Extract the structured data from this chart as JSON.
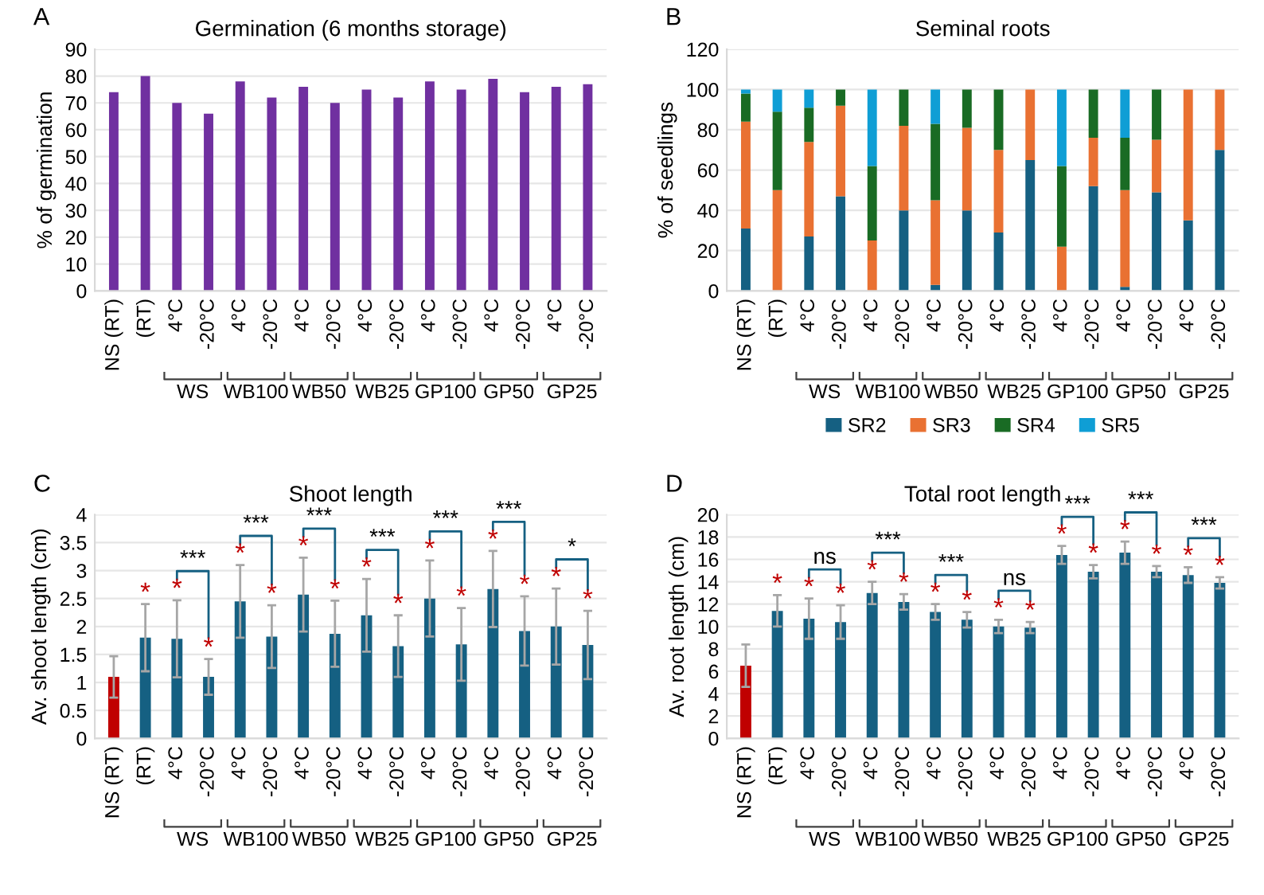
{
  "chart_data": [
    {
      "type": "bar",
      "title": "Germination (6 months storage)",
      "ylabel": "% of germination",
      "categories": [
        "NS (RT)",
        "(RT)",
        "4°C",
        "-20°C",
        "4°C",
        "-20°C",
        "4°C",
        "-20°C",
        "4°C",
        "-20°C",
        "4°C",
        "-20°C",
        "4°C",
        "-20°C",
        "4°C",
        "-20°C"
      ],
      "values": [
        74,
        80,
        70,
        66,
        78,
        72,
        76,
        70,
        75,
        72,
        78,
        75,
        79,
        74,
        76,
        77
      ],
      "color": "#7030a0",
      "ylim": [
        0,
        90
      ],
      "yticks": [
        0,
        10,
        20,
        30,
        40,
        50,
        60,
        70,
        80,
        90
      ],
      "grid": "y",
      "annotations": [
        "A",
        "WS",
        "WB100",
        "WB50",
        "WB25",
        "GP100",
        "GP50",
        "GP25"
      ]
    },
    {
      "type": "bar",
      "stacked": true,
      "title": "Seminal roots",
      "ylabel": "% of seedlings",
      "categories": [
        "NS (RT)",
        "(RT)",
        "4°C",
        "-20°C",
        "4°C",
        "-20°C",
        "4°C",
        "-20°C",
        "4°C",
        "-20°C",
        "4°C",
        "-20°C",
        "4°C",
        "-20°C",
        "4°C",
        "-20°C"
      ],
      "series": [
        {
          "name": "SR2",
          "color": "#156082",
          "values": [
            31,
            0,
            27,
            47,
            0,
            40,
            3,
            40,
            29,
            65,
            0,
            52,
            2,
            49,
            35,
            70
          ]
        },
        {
          "name": "SR3",
          "color": "#e97132",
          "values": [
            53,
            50,
            47,
            45,
            25,
            42,
            42,
            41,
            41,
            35,
            22,
            24,
            48,
            26,
            65,
            30
          ]
        },
        {
          "name": "SR4",
          "color": "#196b24",
          "values": [
            14,
            39,
            17,
            8,
            37,
            18,
            38,
            19,
            30,
            0,
            40,
            24,
            26,
            25,
            0,
            0
          ]
        },
        {
          "name": "SR5",
          "color": "#0f9ed5",
          "values": [
            2,
            11,
            9,
            0,
            38,
            0,
            17,
            0,
            0,
            0,
            38,
            0,
            24,
            0,
            0,
            0
          ]
        }
      ],
      "ylim": [
        0,
        120
      ],
      "yticks": [
        0,
        20,
        40,
        60,
        80,
        100,
        120
      ],
      "grid": "y",
      "legend": "bottom",
      "annotations": [
        "B",
        "WS",
        "WB100",
        "WB50",
        "WB25",
        "GP100",
        "GP50",
        "GP25"
      ]
    },
    {
      "type": "bar",
      "title": "Shoot length",
      "ylabel": "Av. shoot length (cm)",
      "categories": [
        "NS (RT)",
        "(RT)",
        "4°C",
        "-20°C",
        "4°C",
        "-20°C",
        "4°C",
        "-20°C",
        "4°C",
        "-20°C",
        "4°C",
        "-20°C",
        "4°C",
        "-20°C",
        "4°C",
        "-20°C"
      ],
      "values": [
        1.1,
        1.8,
        1.78,
        1.1,
        2.45,
        1.82,
        2.57,
        1.87,
        2.2,
        1.65,
        2.5,
        1.68,
        2.67,
        1.92,
        2.0,
        1.67
      ],
      "errors": [
        0.37,
        0.6,
        0.69,
        0.32,
        0.65,
        0.56,
        0.66,
        0.59,
        0.65,
        0.55,
        0.68,
        0.65,
        0.68,
        0.62,
        0.68,
        0.61
      ],
      "colors": [
        "#c00000",
        "#156082",
        "#156082",
        "#156082",
        "#156082",
        "#156082",
        "#156082",
        "#156082",
        "#156082",
        "#156082",
        "#156082",
        "#156082",
        "#156082",
        "#156082",
        "#156082",
        "#156082"
      ],
      "value_labels": [
        null,
        "*",
        "*",
        "*",
        "*",
        "*",
        "*",
        "*",
        "*",
        "*",
        "*",
        "*",
        "*",
        "*",
        "*",
        "*"
      ],
      "ylim": [
        0,
        4
      ],
      "yticks": [
        0,
        0.5,
        1,
        1.5,
        2,
        2.5,
        3,
        3.5,
        4
      ],
      "grid": "y",
      "annotations": [
        "C",
        "WS",
        "WB100",
        "WB50",
        "WB25",
        "GP100",
        "GP50",
        "GP25",
        "***",
        "***",
        "***",
        "***",
        "***",
        "***",
        "*"
      ]
    },
    {
      "type": "bar",
      "title": "Total root length",
      "ylabel": "Av. root length (cm)",
      "categories": [
        "NS (RT)",
        "(RT)",
        "4°C",
        "-20°C",
        "4°C",
        "-20°C",
        "4°C",
        "-20°C",
        "4°C",
        "-20°C",
        "4°C",
        "-20°C",
        "4°C",
        "-20°C",
        "4°C",
        "-20°C"
      ],
      "values": [
        6.5,
        11.4,
        10.7,
        10.4,
        13.0,
        12.2,
        11.3,
        10.6,
        10.0,
        9.9,
        16.4,
        14.9,
        16.6,
        14.9,
        14.6,
        13.9
      ],
      "errors": [
        1.9,
        1.4,
        1.8,
        1.5,
        1.0,
        0.7,
        0.7,
        0.7,
        0.6,
        0.5,
        0.8,
        0.6,
        1.0,
        0.5,
        0.7,
        0.5
      ],
      "colors": [
        "#c00000",
        "#156082",
        "#156082",
        "#156082",
        "#156082",
        "#156082",
        "#156082",
        "#156082",
        "#156082",
        "#156082",
        "#156082",
        "#156082",
        "#156082",
        "#156082",
        "#156082",
        "#156082"
      ],
      "value_labels": [
        null,
        "*",
        "*",
        "*",
        "*",
        "*",
        "*",
        "*",
        "*",
        "*",
        "*",
        "*",
        "*",
        "*",
        "*",
        "*"
      ],
      "ylim": [
        0,
        20
      ],
      "yticks": [
        0,
        2,
        4,
        6,
        8,
        10,
        12,
        14,
        16,
        18,
        20
      ],
      "grid": "y",
      "annotations": [
        "D",
        "WS",
        "WB100",
        "WB50",
        "WB25",
        "GP100",
        "GP50",
        "GP25",
        "ns",
        "***",
        "***",
        "ns",
        "***",
        "***",
        "***"
      ]
    }
  ]
}
